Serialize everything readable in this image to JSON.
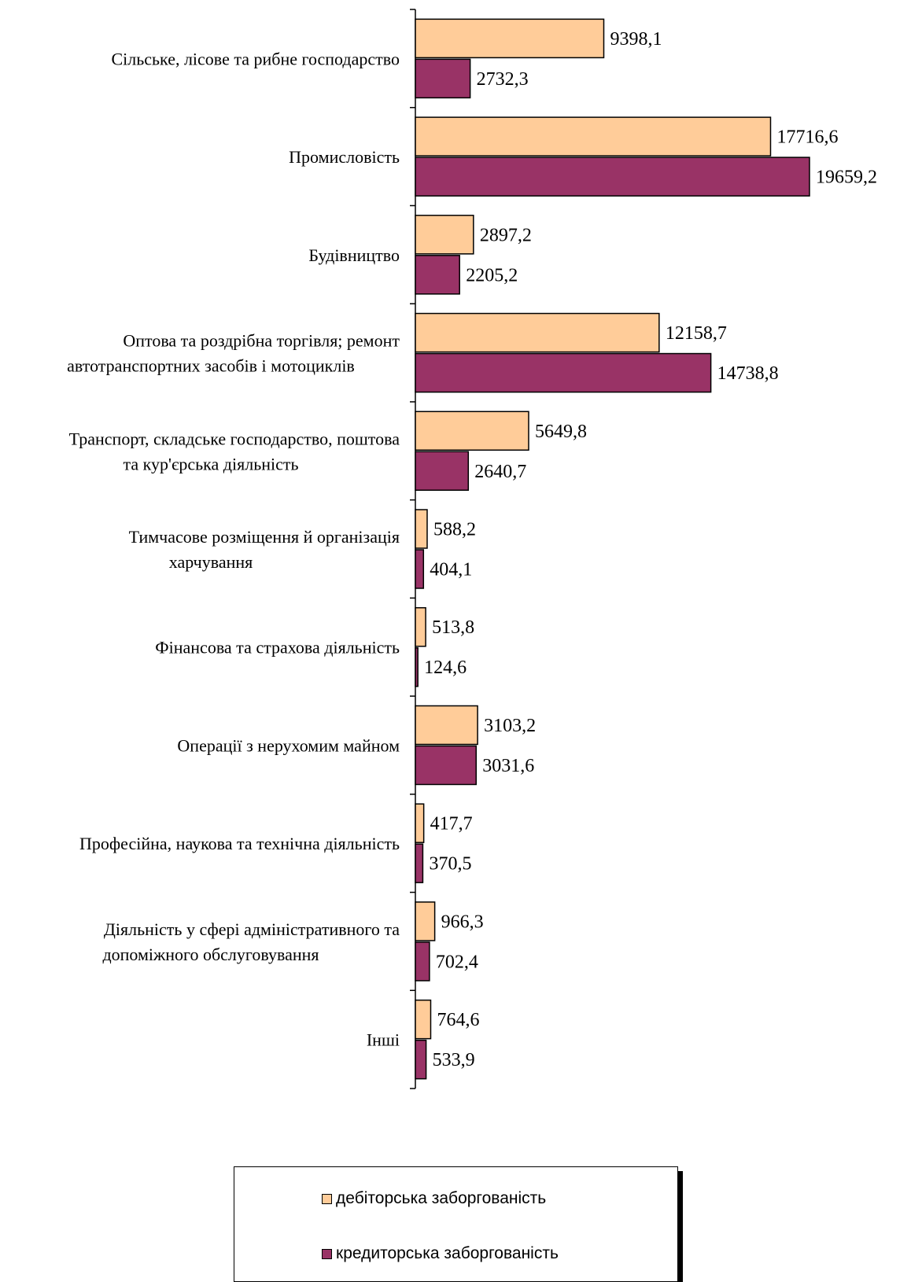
{
  "chart_data": {
    "type": "bar",
    "orientation": "horizontal",
    "categories": [
      [
        "Сільське, лісове та рибне господарство"
      ],
      [
        "Промисловість"
      ],
      [
        "Будівництво"
      ],
      [
        "Оптова та роздрібна торгівля; ремонт",
        "автотранспортних засобів і мотоциклів"
      ],
      [
        "Транспорт, складське господарство, поштова",
        "та кур'єрська діяльність"
      ],
      [
        "Тимчасове розміщення й організація",
        "харчування"
      ],
      [
        "Фінансова та страхова діяльність"
      ],
      [
        "Операції з нерухомим майном"
      ],
      [
        "Професійна, наукова та технічна діяльність"
      ],
      [
        "Діяльність у сфері адміністративного та",
        "допоміжного обслуговування"
      ],
      [
        "Інші"
      ]
    ],
    "series": [
      {
        "name": "дебіторська заборгованість",
        "color": "#ffcc99",
        "values": [
          9398.1,
          17716.6,
          2897.2,
          12158.7,
          5649.8,
          588.2,
          513.8,
          3103.2,
          417.7,
          966.3,
          764.6
        ],
        "labels": [
          "9398,1",
          "17716,6",
          "2897,2",
          "12158,7",
          "5649,8",
          "588,2",
          "513,8",
          "3103,2",
          "417,7",
          "966,3",
          "764,6"
        ]
      },
      {
        "name": "кредиторська заборгованість",
        "color": "#993366",
        "values": [
          2732.3,
          19659.2,
          2205.2,
          14738.8,
          2640.7,
          404.1,
          124.6,
          3031.6,
          370.5,
          702.4,
          533.9
        ],
        "labels": [
          "2732,3",
          "19659,2",
          "2205,2",
          "14738,8",
          "2640,7",
          "404,1",
          "124,6",
          "3031,6",
          "370,5",
          "702,4",
          "533,9"
        ]
      }
    ],
    "xlim": [
      0,
      19659.2
    ],
    "grid": false,
    "legend_position": "bottom"
  },
  "legend": {
    "items": [
      {
        "label": "дебіторська заборгованість",
        "color": "#ffcc99"
      },
      {
        "label": "кредиторська заборгованість",
        "color": "#993366"
      }
    ]
  }
}
